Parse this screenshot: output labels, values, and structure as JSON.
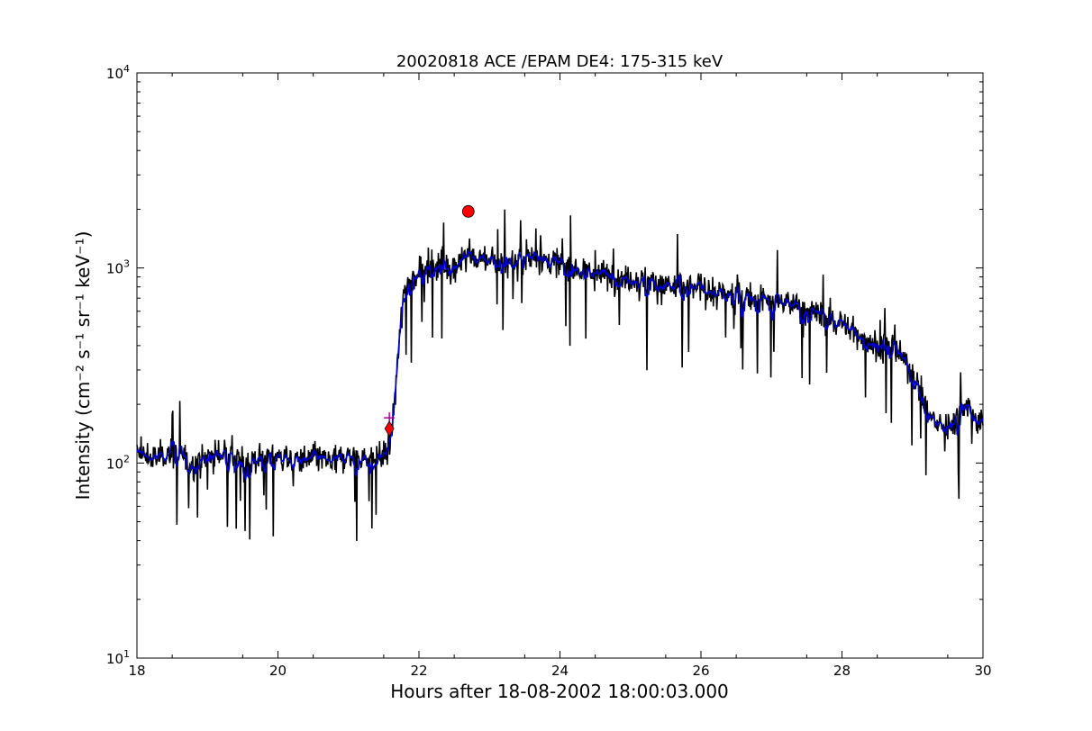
{
  "chart_data": {
    "type": "line",
    "title": "20020818 ACE /EPAM DE4: 175-315 keV",
    "xlabel": "Hours after 18-08-2002 18:00:03.000",
    "ylabel": "Intensity (cm⁻² s⁻¹ sr⁻¹ keV⁻¹)",
    "xlim": [
      18,
      30
    ],
    "ylim": [
      10,
      10000
    ],
    "yscale": "log",
    "x_ticks": [
      18,
      20,
      22,
      24,
      26,
      28,
      30
    ],
    "y_ticks": [
      {
        "value": 10,
        "base": "10",
        "exp": "1"
      },
      {
        "value": 100,
        "base": "10",
        "exp": "2"
      },
      {
        "value": 1000,
        "base": "10",
        "exp": "3"
      },
      {
        "value": 10000,
        "base": "10",
        "exp": "4"
      }
    ],
    "grid": false,
    "colors": {
      "raw": "#000000",
      "smoothed": "#0000cc",
      "marker": "#ff0000",
      "onset_cross": "#aa00aa"
    },
    "series": [
      {
        "x": [
          18.0,
          18.25,
          18.5,
          18.75,
          19.0,
          19.25,
          19.5,
          19.75,
          20.0,
          20.25,
          20.5,
          20.75,
          21.0,
          21.25,
          21.5,
          21.55,
          21.6,
          21.65,
          21.7,
          21.75,
          21.8,
          21.9,
          22.0,
          22.25,
          22.5,
          22.7,
          22.75,
          23.0,
          23.25,
          23.5,
          23.75,
          24.0,
          24.25,
          24.5,
          24.75,
          25.0,
          25.25,
          25.5,
          25.75,
          26.0,
          26.25,
          26.5,
          26.75,
          27.0,
          27.25,
          27.5,
          27.75,
          28.0,
          28.25,
          28.5,
          28.75,
          29.0,
          29.25,
          29.5,
          29.75,
          30.0
        ],
        "values": [
          110,
          105,
          115,
          100,
          108,
          112,
          100,
          105,
          110,
          100,
          108,
          100,
          110,
          105,
          110,
          115,
          130,
          200,
          350,
          550,
          800,
          900,
          950,
          1050,
          1000,
          1200,
          1100,
          1100,
          1050,
          1150,
          1100,
          1050,
          1000,
          950,
          900,
          900,
          850,
          800,
          800,
          780,
          740,
          730,
          700,
          680,
          660,
          620,
          560,
          520,
          450,
          400,
          380,
          300,
          170,
          150,
          200,
          150
        ]
      }
    ],
    "markers": [
      {
        "x": 21.58,
        "y": 150,
        "shape": "diamond"
      },
      {
        "x": 22.7,
        "y": 1950,
        "shape": "circle"
      }
    ]
  }
}
